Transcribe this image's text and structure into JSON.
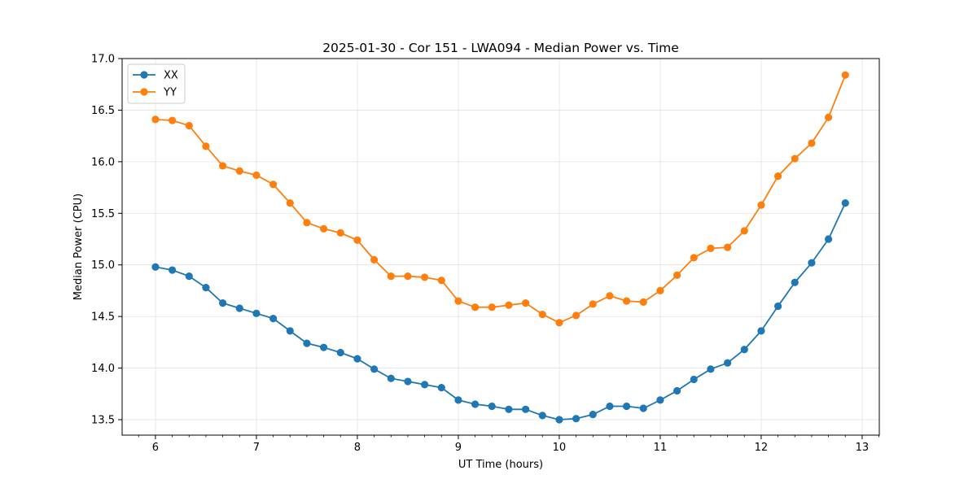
{
  "chart_data": {
    "type": "line",
    "title": "2025-01-30 - Cor 151 - LWA094 - Median Power vs. Time",
    "xlabel": "UT Time (hours)",
    "ylabel": "Median Power (CPU)",
    "xlim": [
      5.67,
      13.17
    ],
    "ylim": [
      13.35,
      17.0
    ],
    "xticks": [
      6,
      7,
      8,
      9,
      10,
      11,
      12,
      13
    ],
    "xtick_labels": [
      "6",
      "7",
      "8",
      "9",
      "10",
      "11",
      "12",
      "13"
    ],
    "yticks": [
      13.5,
      14.0,
      14.5,
      15.0,
      15.5,
      16.0,
      16.5,
      17.0
    ],
    "ytick_labels": [
      "13.5",
      "14.0",
      "14.5",
      "15.0",
      "15.5",
      "16.0",
      "16.5",
      "17.0"
    ],
    "grid": true,
    "legend_position": "top-left",
    "x": [
      6.0,
      6.1667,
      6.3333,
      6.5,
      6.6667,
      6.8333,
      7.0,
      7.1667,
      7.3333,
      7.5,
      7.6667,
      7.8333,
      8.0,
      8.1667,
      8.3333,
      8.5,
      8.6667,
      8.8333,
      9.0,
      9.1667,
      9.3333,
      9.5,
      9.6667,
      9.8333,
      10.0,
      10.1667,
      10.3333,
      10.5,
      10.6667,
      10.8333,
      11.0,
      11.1667,
      11.3333,
      11.5,
      11.6667,
      11.8333,
      12.0,
      12.1667,
      12.3333,
      12.5,
      12.6667,
      12.8333
    ],
    "series": [
      {
        "name": "XX",
        "color": "#1f77b4",
        "values": [
          14.98,
          14.95,
          14.89,
          14.78,
          14.63,
          14.58,
          14.53,
          14.48,
          14.36,
          14.24,
          14.2,
          14.15,
          14.09,
          13.99,
          13.9,
          13.87,
          13.84,
          13.81,
          13.69,
          13.65,
          13.63,
          13.6,
          13.6,
          13.54,
          13.5,
          13.51,
          13.55,
          13.63,
          13.63,
          13.61,
          13.69,
          13.78,
          13.89,
          13.99,
          14.05,
          14.18,
          14.36,
          14.6,
          14.83,
          15.02,
          15.25,
          15.6
        ]
      },
      {
        "name": "YY",
        "color": "#ff7f0e",
        "values": [
          16.41,
          16.4,
          16.35,
          16.15,
          15.96,
          15.91,
          15.87,
          15.78,
          15.6,
          15.41,
          15.35,
          15.31,
          15.24,
          15.05,
          14.89,
          14.89,
          14.88,
          14.85,
          14.65,
          14.59,
          14.59,
          14.61,
          14.63,
          14.52,
          14.44,
          14.51,
          14.62,
          14.7,
          14.65,
          14.64,
          14.75,
          14.9,
          15.07,
          15.16,
          15.17,
          15.33,
          15.58,
          15.86,
          16.03,
          16.18,
          16.43,
          16.84
        ]
      }
    ]
  }
}
